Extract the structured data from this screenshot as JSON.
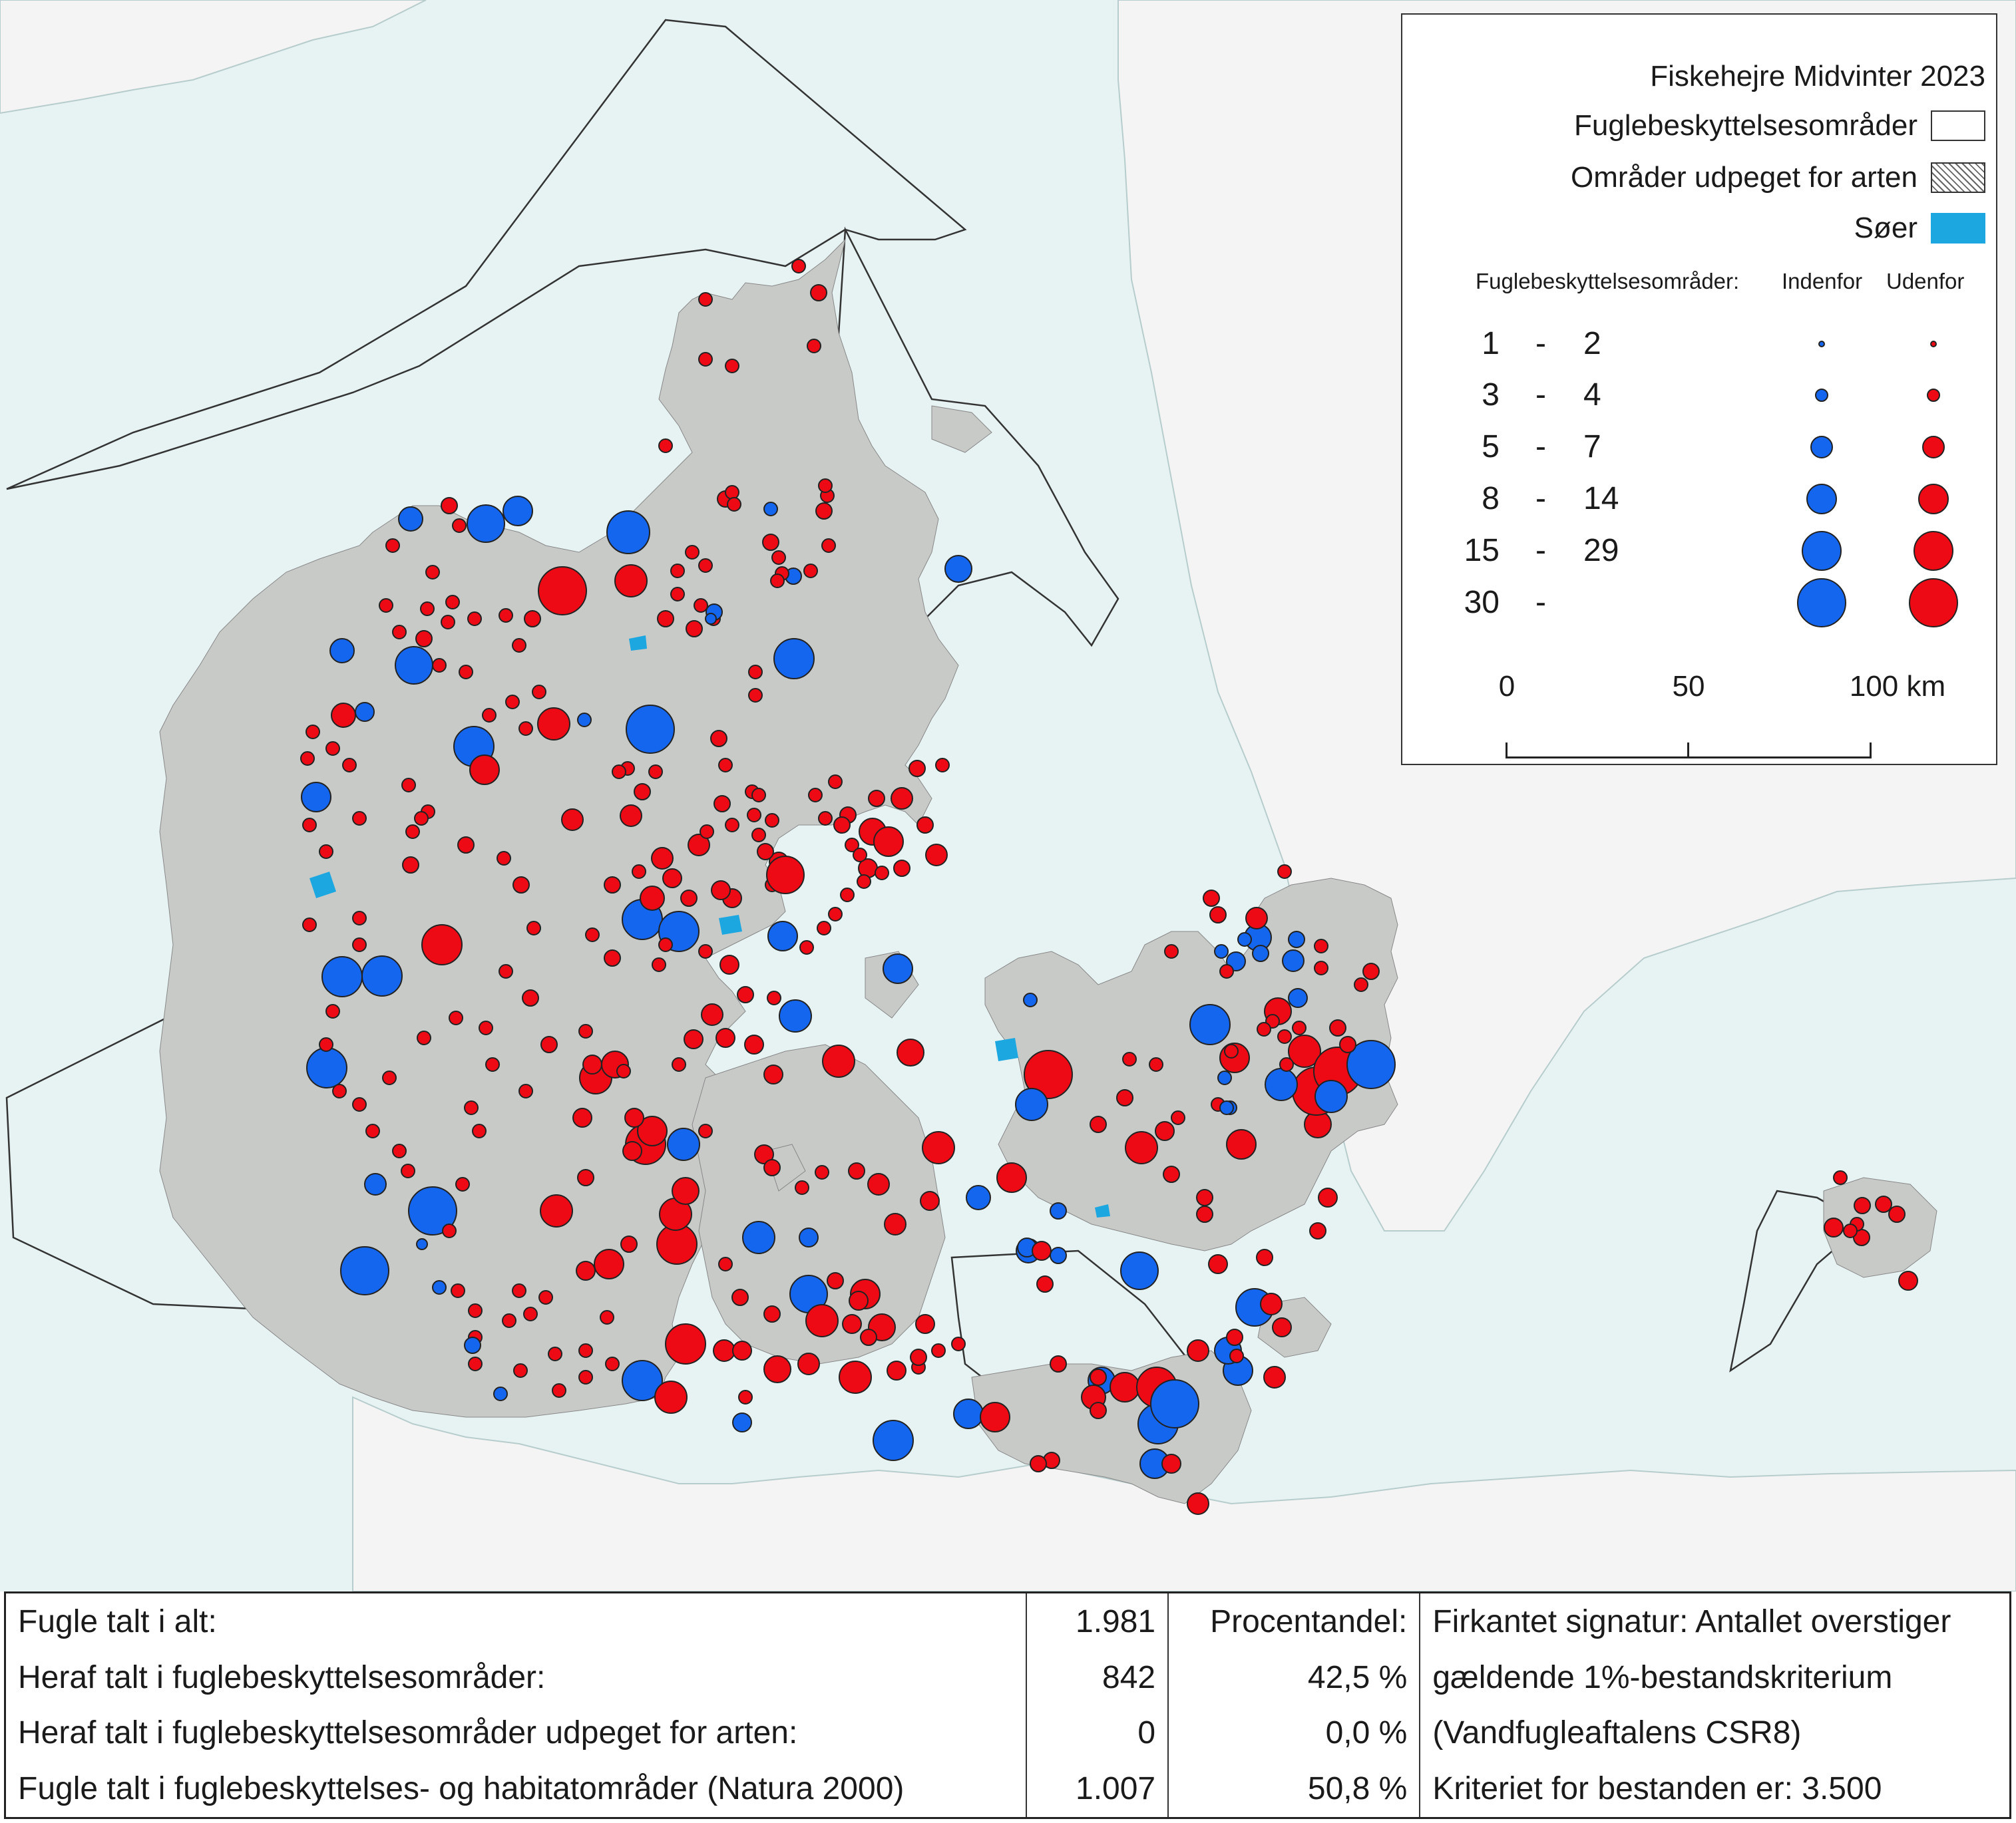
{
  "legend": {
    "title": "Fiskehejre Midvinter 2023",
    "items": [
      {
        "label": "Fuglebeskyttelsesområder",
        "swatch": "white"
      },
      {
        "label": "Områder udpeget for arten",
        "swatch": "hatch"
      },
      {
        "label": "Søer",
        "swatch": "lake"
      }
    ],
    "size_header": "Fuglebeskyttelsesområder:",
    "col_in": "Indenfor",
    "col_out": "Udenfor",
    "classes": [
      {
        "from": "1",
        "dash": "-",
        "to": "2"
      },
      {
        "from": "3",
        "dash": "-",
        "to": "4"
      },
      {
        "from": "5",
        "dash": "-",
        "to": "7"
      },
      {
        "from": "8",
        "dash": "-",
        "to": "14"
      },
      {
        "from": "15",
        "dash": "-",
        "to": "29"
      },
      {
        "from": "30",
        "dash": "-",
        "to": ""
      }
    ],
    "scale": {
      "t0": "0",
      "t1": "50",
      "t2": "100 km"
    }
  },
  "colors": {
    "sea": "#e7f3f3",
    "land": "#c8cac8",
    "foreign_land": "#f4f4f4",
    "lake": "#1da7e0",
    "inside": "#1466ee",
    "outside": "#ee0a14"
  },
  "stats": {
    "rows": [
      {
        "label": "Fugle talt i alt:",
        "value": "1.981",
        "pct": "Procentandel:",
        "note": "Firkantet signatur: Antallet overstiger"
      },
      {
        "label": "Heraf talt i fuglebeskyttelsesområder:",
        "value": "842",
        "pct": "42,5 %",
        "note": "gældende 1%-bestandskriterium"
      },
      {
        "label": "Heraf talt i fuglebeskyttelsesområder udpeget for arten:",
        "value": "0",
        "pct": "0,0 %",
        "note": "(Vandfugleaftalens CSR8)"
      },
      {
        "label": "Fugle talt i fuglebeskyttelses- og habitatområder (Natura 2000)",
        "value": "1.007",
        "pct": "50,8 %",
        "note": "Kriteriet for bestanden er: 3.500"
      }
    ]
  }
}
